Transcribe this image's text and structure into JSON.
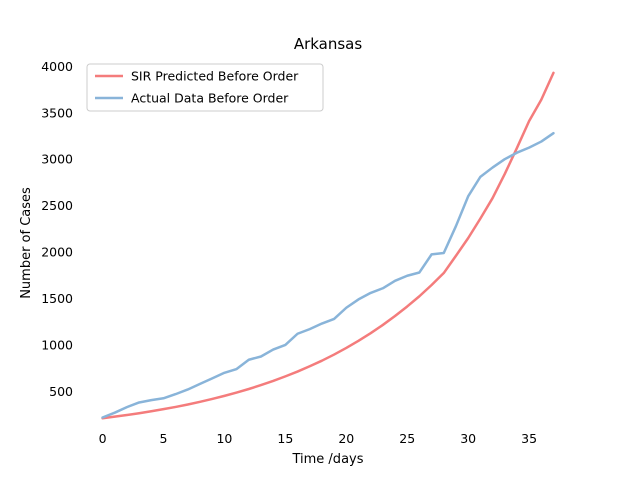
{
  "chart_data": {
    "type": "line",
    "title": "Arkansas",
    "xlabel": "Time /days",
    "ylabel": "Number of Cases",
    "xlim": [
      -1.85,
      38.85
    ],
    "ylim": [
      105,
      4090
    ],
    "xticks": [
      0,
      5,
      10,
      15,
      20,
      25,
      30,
      35
    ],
    "yticks": [
      500,
      1000,
      1500,
      2000,
      2500,
      3000,
      3500,
      4000
    ],
    "grid": false,
    "legend": "top-left",
    "series": [
      {
        "name": "SIR Predicted Before Order",
        "color": "#f47c7c",
        "x": [
          0,
          1,
          2,
          3,
          4,
          5,
          6,
          7,
          8,
          9,
          10,
          11,
          12,
          13,
          14,
          15,
          16,
          17,
          18,
          19,
          20,
          21,
          22,
          23,
          24,
          25,
          26,
          27,
          28,
          29,
          30,
          31,
          32,
          33,
          34,
          35,
          36,
          37
        ],
        "values": [
          210,
          227,
          245,
          264,
          285,
          308,
          332,
          358,
          387,
          418,
          451,
          487,
          525,
          567,
          612,
          661,
          713,
          770,
          830,
          896,
          967,
          1044,
          1126,
          1215,
          1311,
          1414,
          1524,
          1645,
          1774,
          1960,
          2150,
          2360,
          2580,
          2840,
          3120,
          3410,
          3640,
          3930
        ]
      },
      {
        "name": "Actual Data Before Order",
        "color": "#89b4d9",
        "x": [
          0,
          1,
          2,
          3,
          4,
          5,
          6,
          7,
          8,
          9,
          10,
          11,
          12,
          13,
          14,
          15,
          16,
          17,
          18,
          19,
          20,
          21,
          22,
          23,
          24,
          25,
          26,
          27,
          28,
          29,
          30,
          31,
          32,
          33,
          34,
          35,
          36,
          37
        ],
        "values": [
          218,
          270,
          330,
          380,
          405,
          425,
          470,
          520,
          580,
          640,
          700,
          740,
          840,
          875,
          950,
          1000,
          1120,
          1170,
          1230,
          1280,
          1400,
          1490,
          1560,
          1610,
          1690,
          1745,
          1780,
          1975,
          1990,
          2280,
          2600,
          2810,
          2910,
          3000,
          3070,
          3125,
          3190,
          3280
        ]
      }
    ]
  }
}
